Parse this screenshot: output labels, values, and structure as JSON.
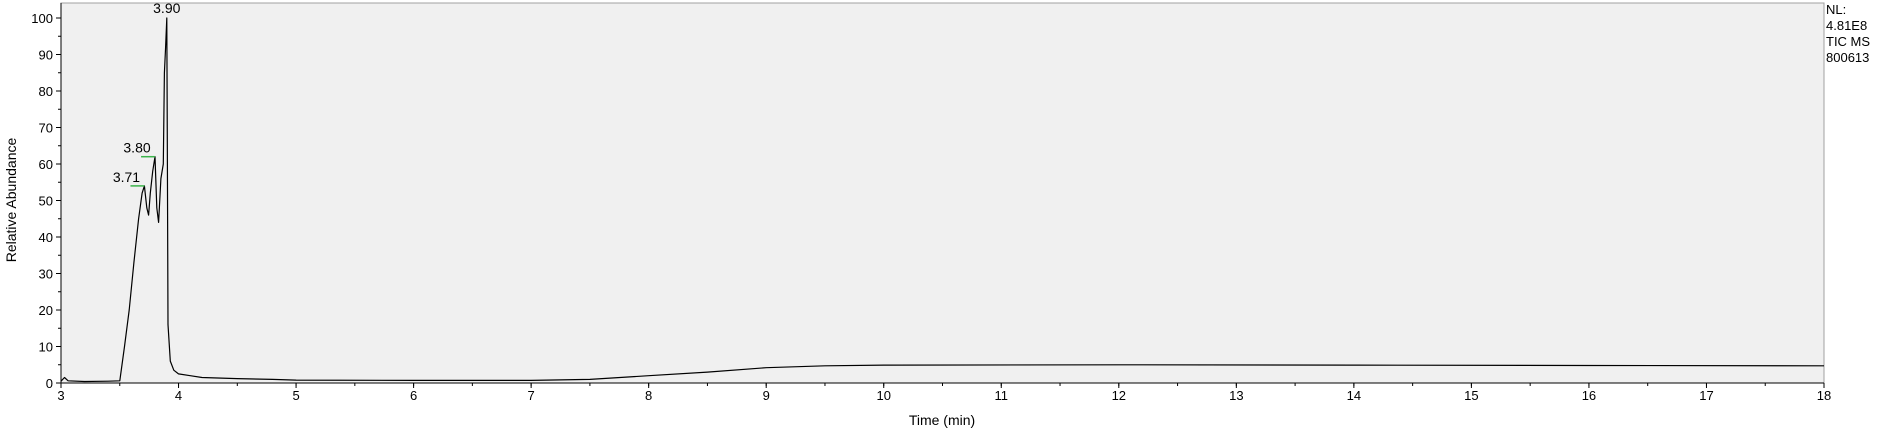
{
  "chart_data": {
    "type": "line",
    "xlabel": "Time (min)",
    "ylabel": "Relative Abundance",
    "xlim": [
      3,
      18
    ],
    "ylim": [
      0,
      100
    ],
    "x_ticks": [
      3,
      4,
      5,
      6,
      7,
      8,
      9,
      10,
      11,
      12,
      13,
      14,
      15,
      16,
      17,
      18
    ],
    "y_ticks": [
      0,
      10,
      20,
      30,
      40,
      50,
      60,
      70,
      80,
      90,
      100
    ],
    "grid": false,
    "plot_background": "#f0f0f0",
    "line_color": "#000000",
    "marker_color": "#3cb44b",
    "series": [
      {
        "x": [
          3.0,
          3.03,
          3.06,
          3.2,
          3.4,
          3.5,
          3.54,
          3.58,
          3.62,
          3.66,
          3.69,
          3.71,
          3.73,
          3.745,
          3.76,
          3.78,
          3.8,
          3.815,
          3.83,
          3.85,
          3.87,
          3.88,
          3.89,
          3.9,
          3.905,
          3.91,
          3.93,
          3.96,
          4.0,
          4.1,
          4.2,
          4.5,
          4.8,
          5.0,
          6.0,
          7.0,
          7.5,
          8.0,
          8.5,
          9.0,
          9.5,
          10.0,
          12.0,
          14.0,
          16.0,
          18.0
        ],
        "y": [
          0.5,
          1.5,
          0.6,
          0.4,
          0.5,
          0.6,
          10,
          20,
          33,
          45,
          52,
          54,
          48,
          46,
          52,
          58,
          62,
          48,
          44,
          56,
          60,
          85,
          92,
          100,
          60,
          16,
          6,
          3.5,
          2.5,
          2.0,
          1.5,
          1.2,
          1.0,
          0.8,
          0.7,
          0.7,
          1.0,
          2.0,
          3.0,
          4.2,
          4.7,
          4.9,
          5.0,
          4.9,
          4.8,
          4.7
        ]
      }
    ],
    "peak_labels": [
      {
        "x": 3.71,
        "y": 54,
        "text": "3.71",
        "marker": true
      },
      {
        "x": 3.8,
        "y": 62,
        "text": "3.80",
        "marker": true
      },
      {
        "x": 3.9,
        "y": 100,
        "text": "3.90",
        "marker": false
      }
    ]
  },
  "info": {
    "nl_label": "NL:",
    "nl_value": "4.81E8",
    "scan": "TIC  MS",
    "sample": "800613"
  }
}
